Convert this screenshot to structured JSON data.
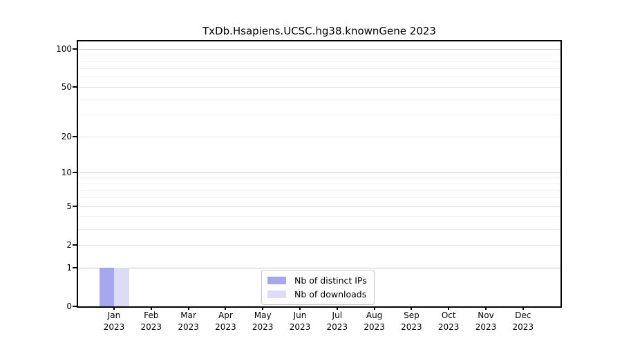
{
  "chart_data": {
    "type": "bar",
    "title": "TxDb.Hsapiens.UCSC.hg38.knownGene 2023",
    "categories": [
      "Jan",
      "Feb",
      "Mar",
      "Apr",
      "May",
      "Jun",
      "Jul",
      "Aug",
      "Sep",
      "Oct",
      "Nov",
      "Dec"
    ],
    "category_year": "2023",
    "series": [
      {
        "name": "Nb of distinct IPs",
        "color": "#a6a6f1",
        "values": [
          1,
          0,
          0,
          0,
          0,
          0,
          0,
          0,
          0,
          0,
          0,
          0
        ]
      },
      {
        "name": "Nb of downloads",
        "color": "#dcdcf7",
        "values": [
          1,
          0,
          0,
          0,
          0,
          0,
          0,
          0,
          0,
          0,
          0,
          0
        ]
      }
    ],
    "xlabel": "",
    "ylabel": "",
    "yscale": "log1p",
    "ylim": [
      0,
      115
    ],
    "yticks": [
      0,
      1,
      2,
      5,
      10,
      20,
      50,
      100
    ],
    "minor_yticks": [
      3,
      4,
      6,
      7,
      8,
      9,
      30,
      40,
      60,
      70,
      80,
      90
    ],
    "grid": "horizontal",
    "legend_position": "bottom-center"
  },
  "colors": {
    "axis": "#000000",
    "grid_decade": "#c6c6c6",
    "grid_labeled": "#e2e2e2",
    "grid_minor": "#efefef",
    "legend_border": "#c8c8c8",
    "text": "#000000"
  }
}
